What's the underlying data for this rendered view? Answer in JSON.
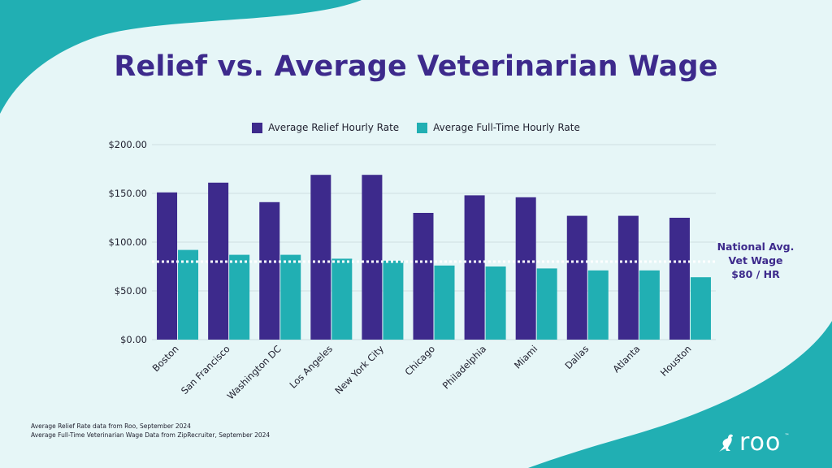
{
  "colors": {
    "relief": "#3d2a8c",
    "fulltime": "#21afb3",
    "teal_shape": "#21afb3",
    "background": "#e6f6f7",
    "grid": "#cfdfe0",
    "reference_line": "#ffffff"
  },
  "icons": {
    "logo": "kangaroo-icon"
  },
  "chart_data": {
    "type": "bar",
    "title": "Relief vs. Average Veterinarian Wage",
    "xlabel": "",
    "ylabel": "",
    "ylim": [
      0,
      200
    ],
    "yticks": [
      0,
      50,
      100,
      150,
      200
    ],
    "ytick_labels": [
      "$0.00",
      "$50.00",
      "$100.00",
      "$150.00",
      "$200.00"
    ],
    "grid": true,
    "legend_position": "top-center",
    "categories": [
      "Boston",
      "San Francisco",
      "Washington DC",
      "Los Angeles",
      "New York City",
      "Chicago",
      "Philadelphia",
      "Miami",
      "Dallas",
      "Atlanta",
      "Houston"
    ],
    "series": [
      {
        "name": "Average Relief Hourly Rate",
        "values": [
          151,
          161,
          141,
          169,
          169,
          130,
          148,
          146,
          127,
          127,
          125
        ]
      },
      {
        "name": "Average Full-Time Hourly Rate",
        "values": [
          92,
          87,
          87,
          83,
          81,
          76,
          75,
          73,
          71,
          71,
          64
        ]
      }
    ],
    "reference_line": {
      "value": 80,
      "label_lines": [
        "National Avg.",
        "Vet Wage",
        "$80 / HR"
      ]
    }
  },
  "notes": [
    "Average Relief Rate data from Roo, September 2024",
    "Average Full-Time Veterinarian Wage Data from ZipRecruiter, September 2024"
  ],
  "brand": {
    "name": "roo",
    "trademark": "™"
  }
}
